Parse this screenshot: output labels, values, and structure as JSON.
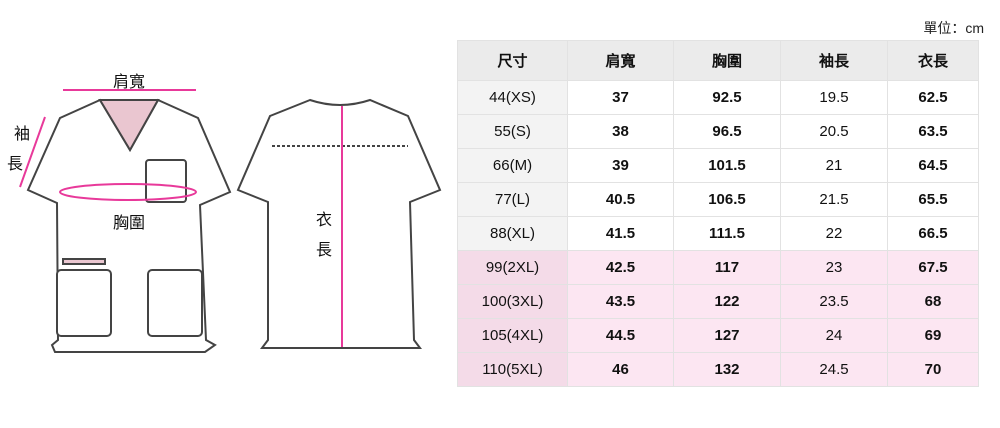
{
  "unit_label": "單位：cm",
  "diagram": {
    "shoulder": "肩寬",
    "sleeve_1": "袖",
    "sleeve_2": "長",
    "chest": "胸圍",
    "length_1": "衣",
    "length_2": "長",
    "accent_color": "#e8399a"
  },
  "table": {
    "headers": [
      "尺寸",
      "肩寬",
      "胸圍",
      "袖長",
      "衣長"
    ],
    "rows": [
      [
        "44(XS)",
        "37",
        "92.5",
        "19.5",
        "62.5"
      ],
      [
        "55(S)",
        "38",
        "96.5",
        "20.5",
        "63.5"
      ],
      [
        "66(M)",
        "39",
        "101.5",
        "21",
        "64.5"
      ],
      [
        "77(L)",
        "40.5",
        "106.5",
        "21.5",
        "65.5"
      ],
      [
        "88(XL)",
        "41.5",
        "111.5",
        "22",
        "66.5"
      ],
      [
        "99(2XL)",
        "42.5",
        "117",
        "23",
        "67.5"
      ],
      [
        "100(3XL)",
        "43.5",
        "122",
        "23.5",
        "68"
      ],
      [
        "105(4XL)",
        "44.5",
        "127",
        "24",
        "69"
      ],
      [
        "110(5XL)",
        "46",
        "132",
        "24.5",
        "70"
      ]
    ],
    "highlight_color": "#fce6f2"
  }
}
